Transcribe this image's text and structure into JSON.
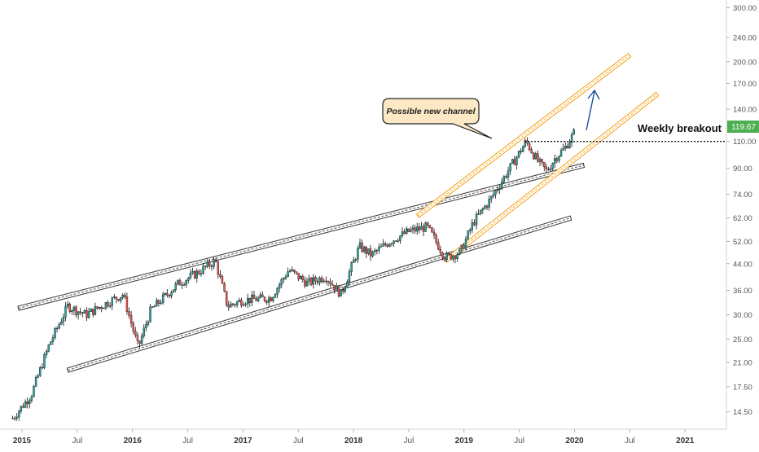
{
  "chart_data": {
    "type": "candlestick",
    "scale": "log",
    "ylim": [
      13.2,
      310
    ],
    "y_ticks": [
      "300.00",
      "240.00",
      "200.00",
      "170.00",
      "140.00",
      "110.00",
      "90.00",
      "74.00",
      "62.00",
      "52.00",
      "44.00",
      "36.00",
      "30.00",
      "25.00",
      "21.00",
      "17.50",
      "14.50"
    ],
    "x_ticks": [
      "2015",
      "Jul",
      "2016",
      "Jul",
      "2017",
      "Jul",
      "2018",
      "Jul",
      "2019",
      "Jul",
      "2020",
      "Jul",
      "2021"
    ],
    "last_price": "119.67",
    "price_anchors": [
      {
        "x": "2014-12",
        "y": 13.8
      },
      {
        "x": "2015-02",
        "y": 16.5
      },
      {
        "x": "2015-04",
        "y": 24
      },
      {
        "x": "2015-06",
        "y": 32
      },
      {
        "x": "2015-08",
        "y": 30
      },
      {
        "x": "2015-10",
        "y": 32.5
      },
      {
        "x": "2015-12",
        "y": 35
      },
      {
        "x": "2016-01-20",
        "y": 23.5
      },
      {
        "x": "2016-03",
        "y": 31
      },
      {
        "x": "2016-06",
        "y": 38
      },
      {
        "x": "2016-08",
        "y": 41
      },
      {
        "x": "2016-10",
        "y": 45
      },
      {
        "x": "2016-11-10",
        "y": 32
      },
      {
        "x": "2017-01",
        "y": 33.5
      },
      {
        "x": "2017-04",
        "y": 34
      },
      {
        "x": "2017-06",
        "y": 42
      },
      {
        "x": "2017-08",
        "y": 38
      },
      {
        "x": "2017-10",
        "y": 40
      },
      {
        "x": "2017-11-20",
        "y": 35
      },
      {
        "x": "2018-01-20",
        "y": 50
      },
      {
        "x": "2018-03",
        "y": 47
      },
      {
        "x": "2018-05",
        "y": 52
      },
      {
        "x": "2018-07",
        "y": 56
      },
      {
        "x": "2018-09",
        "y": 58
      },
      {
        "x": "2018-11",
        "y": 46
      },
      {
        "x": "2018-12-20",
        "y": 48
      },
      {
        "x": "2019-02",
        "y": 60
      },
      {
        "x": "2019-04",
        "y": 72
      },
      {
        "x": "2019-06",
        "y": 90
      },
      {
        "x": "2019-07-25",
        "y": 110
      },
      {
        "x": "2019-09",
        "y": 95
      },
      {
        "x": "2019-10",
        "y": 88
      },
      {
        "x": "2019-11",
        "y": 98
      },
      {
        "x": "2019-12",
        "y": 105
      },
      {
        "x": "2020-01-05",
        "y": 119.67
      }
    ],
    "channels": [
      {
        "name": "upper-long-channel",
        "color": "#444444",
        "from": {
          "x": "2014-12-20",
          "y": 31.5
        },
        "to": {
          "x": "2020-02",
          "y": 92
        }
      },
      {
        "name": "lower-long-channel",
        "color": "#444444",
        "from": {
          "x": "2015-06",
          "y": 19.8
        },
        "to": {
          "x": "2019-12-20",
          "y": 62
        }
      },
      {
        "name": "upper-new-channel",
        "color": "#f5a623",
        "from": {
          "x": "2018-08",
          "y": 63
        },
        "to": {
          "x": "2020-07",
          "y": 210
        }
      },
      {
        "name": "lower-new-channel",
        "color": "#f5a623",
        "from": {
          "x": "2018-11",
          "y": 45
        },
        "to": {
          "x": "2020-10",
          "y": 157
        }
      }
    ],
    "breakout_level": 110,
    "colors": {
      "up": "#26a69a",
      "down": "#ef5350",
      "wick": "#111111",
      "channel_new": "#f5a623",
      "arrow": "#1a4fa0",
      "price_tag": "#4caf50",
      "callout_fill": "#fce8c4"
    }
  },
  "annotations": {
    "callout": "Possible new channel",
    "breakout_label": "Weekly breakout"
  }
}
